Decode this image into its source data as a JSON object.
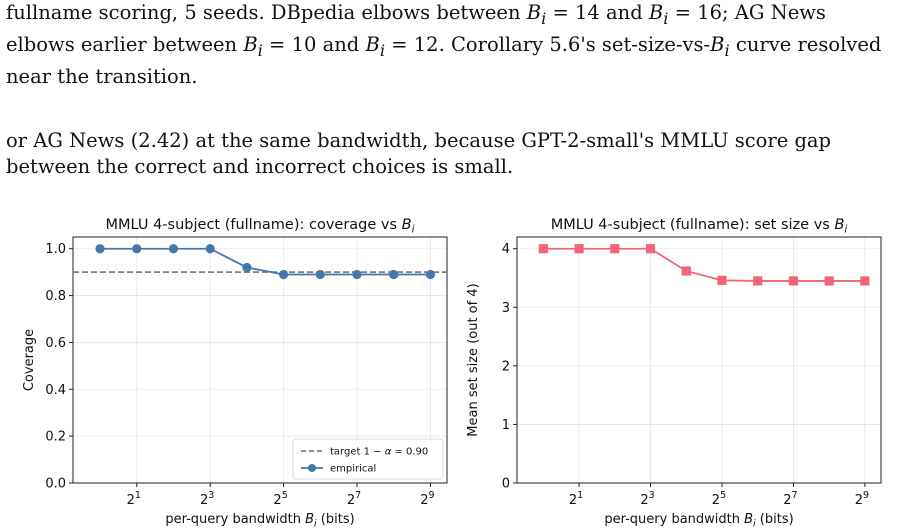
{
  "paper": {
    "paragraph1": {
      "line1": [
        "fullname scoring, 5 seeds. DBpedia elbows between ",
        "B",
        "i",
        " = 14 and ",
        "B",
        "i",
        " = 16; AG News"
      ],
      "line2": [
        "elbows earlier between ",
        "B",
        "i",
        " = 10 and ",
        "B",
        "i",
        " = 12. Corollary 5.6's set-size-vs-",
        "B",
        "i",
        " curve resolved"
      ],
      "line3": "near the transition."
    },
    "paragraph2": {
      "line1": "or AG News (2.42) at the same bandwidth, because GPT-2-small's MMLU score gap",
      "line2": "between the correct and incorrect choices is small."
    }
  },
  "chart_data": [
    {
      "type": "line",
      "title": "MMLU 4-subject (fullname): coverage vs B_i",
      "title_parts": [
        "MMLU 4-subject (fullname): coverage vs ",
        "B",
        "i"
      ],
      "xlabel_parts": [
        "per-query bandwidth ",
        "B",
        "i",
        " (bits)"
      ],
      "ylabel": "Coverage",
      "x_scale": "log2",
      "x": [
        1,
        2,
        4,
        8,
        16,
        32,
        64,
        128,
        256,
        512
      ],
      "xlim": [
        0.6,
        700
      ],
      "xticks": [
        {
          "base": "2",
          "exp": "1",
          "value": 2
        },
        {
          "base": "2",
          "exp": "3",
          "value": 8
        },
        {
          "base": "2",
          "exp": "5",
          "value": 32
        },
        {
          "base": "2",
          "exp": "7",
          "value": 128
        },
        {
          "base": "2",
          "exp": "9",
          "value": 512
        }
      ],
      "yticks": [
        "0.0",
        "0.2",
        "0.4",
        "0.6",
        "0.8",
        "1.0"
      ],
      "ylim": [
        0,
        1.05
      ],
      "grid": true,
      "legend_position": "bottom-right",
      "reference_line": {
        "y": 0.9,
        "label_parts": [
          "target 1 − ",
          "α",
          " = 0.90"
        ],
        "color": "#808080"
      },
      "series": [
        {
          "name": "empirical",
          "marker": "circle",
          "color": "#4477aa",
          "values": [
            1.0,
            1.0,
            1.0,
            1.0,
            0.92,
            0.89,
            0.89,
            0.89,
            0.89,
            0.89
          ]
        }
      ]
    },
    {
      "type": "line",
      "title": "MMLU 4-subject (fullname): set size vs B_i",
      "title_parts": [
        "MMLU 4-subject (fullname): set size vs ",
        "B",
        "i"
      ],
      "xlabel_parts": [
        "per-query bandwidth ",
        "B",
        "i",
        " (bits)"
      ],
      "ylabel": "Mean set size (out of 4)",
      "x_scale": "log2",
      "x": [
        1,
        2,
        4,
        8,
        16,
        32,
        64,
        128,
        256,
        512
      ],
      "xlim": [
        0.6,
        700
      ],
      "xticks": [
        {
          "base": "2",
          "exp": "1",
          "value": 2
        },
        {
          "base": "2",
          "exp": "3",
          "value": 8
        },
        {
          "base": "2",
          "exp": "5",
          "value": 32
        },
        {
          "base": "2",
          "exp": "7",
          "value": 128
        },
        {
          "base": "2",
          "exp": "9",
          "value": 512
        }
      ],
      "yticks": [
        "0",
        "1",
        "2",
        "3",
        "4"
      ],
      "ylim": [
        0,
        4.2
      ],
      "grid": true,
      "series": [
        {
          "marker": "square",
          "color": "#ee6677",
          "values": [
            4.0,
            4.0,
            4.0,
            4.0,
            3.62,
            3.46,
            3.45,
            3.45,
            3.45,
            3.45
          ]
        }
      ]
    }
  ]
}
